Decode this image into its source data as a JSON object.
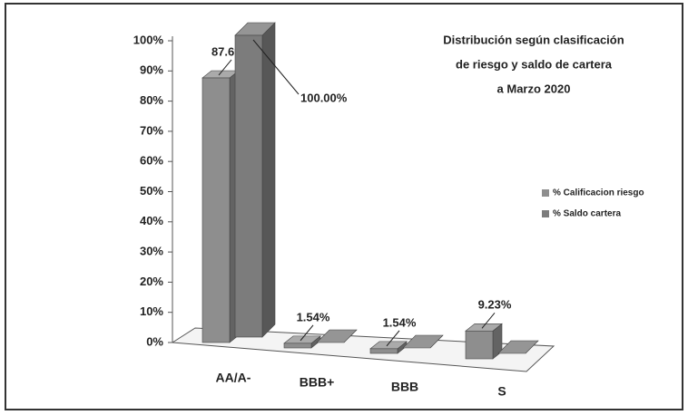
{
  "chart_data": {
    "type": "bar3d",
    "title": [
      "Distribución según clasificación",
      "de riesgo y saldo de cartera",
      "a Marzo 2020"
    ],
    "categories": [
      "AA/A-",
      "BBB+",
      "BBB",
      "S"
    ],
    "series": [
      {
        "name": "% Calificacion riesgo",
        "color": "#8e8e8e",
        "values": [
          87.69,
          1.54,
          1.54,
          9.23
        ],
        "value_labels": [
          "87.69%",
          "1.54%",
          "1.54%",
          "9.23%"
        ]
      },
      {
        "name": "% Saldo cartera",
        "color": "#7c7c7c",
        "values": [
          100.0,
          0,
          0,
          0
        ],
        "value_labels": [
          "100.00%",
          null,
          null,
          null
        ]
      }
    ],
    "ylim": [
      0,
      100
    ],
    "yticks": [
      {
        "value": 0,
        "label": "0%"
      },
      {
        "value": 10,
        "label": "10%"
      },
      {
        "value": 20,
        "label": "20%"
      },
      {
        "value": 30,
        "label": "30%"
      },
      {
        "value": 40,
        "label": "40%"
      },
      {
        "value": 50,
        "label": "50%"
      },
      {
        "value": 60,
        "label": "60%"
      },
      {
        "value": 70,
        "label": "70%"
      },
      {
        "value": 80,
        "label": "80%"
      },
      {
        "value": 90,
        "label": "90%"
      },
      {
        "value": 100,
        "label": "100%"
      }
    ],
    "legend": "right"
  }
}
